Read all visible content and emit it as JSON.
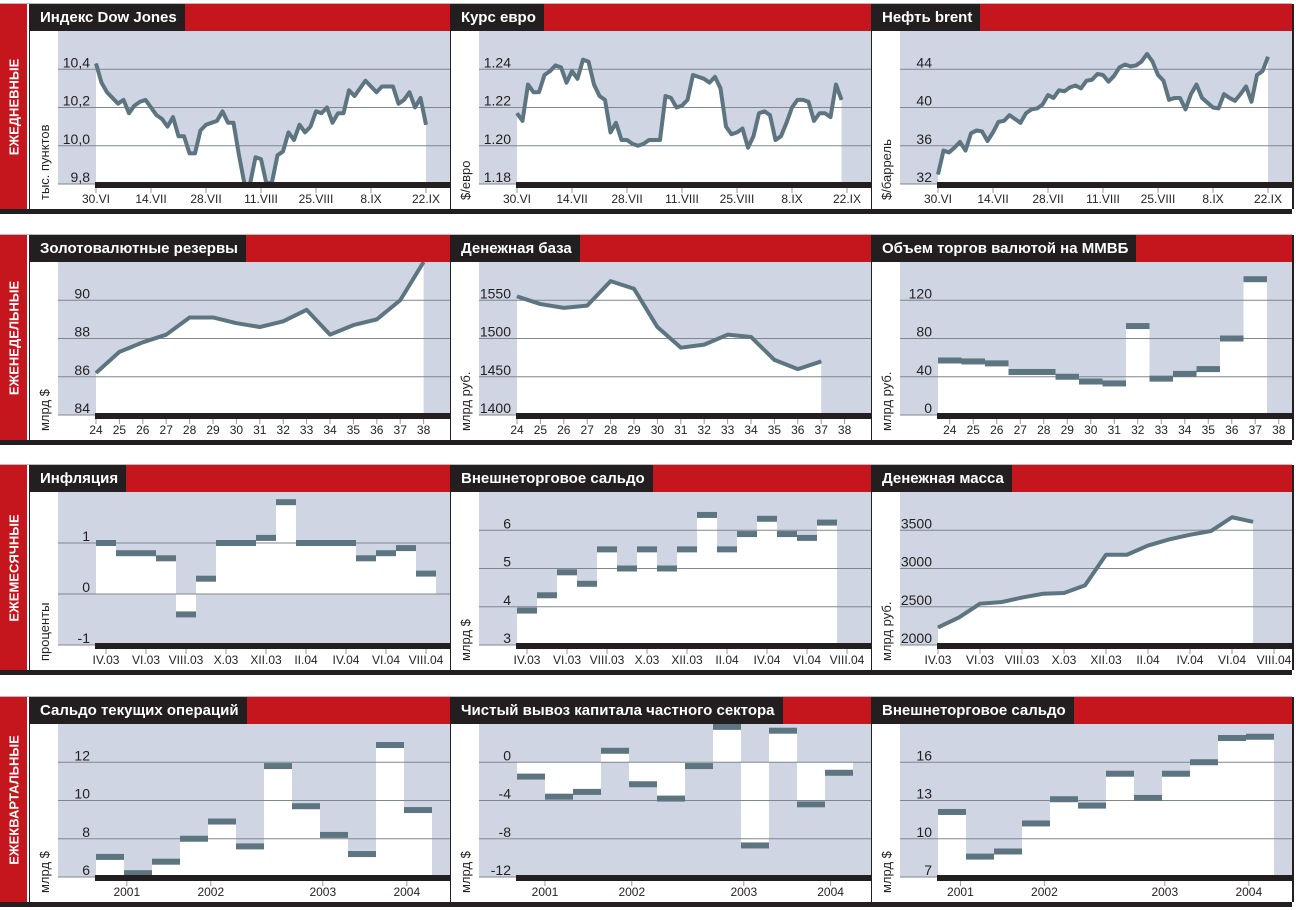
{
  "colors": {
    "red": "#c4161c",
    "black": "#231f20",
    "plot_bg": "#cfd5e2",
    "series": "#5d7580",
    "fill": "#ffffff",
    "grid": "#80868f"
  },
  "rows": [
    {
      "label": "ЕЖЕДНЕВНЫЕ"
    },
    {
      "label": "ЕЖЕНЕДЕЛЬНЫЕ"
    },
    {
      "label": "ЕЖЕМЕСЯЧНЫЕ"
    },
    {
      "label": "ЕЖЕКВАРТАЛЬНЫЕ"
    }
  ],
  "chart_data": [
    {
      "type": "line",
      "freq": "daily",
      "title": "Индекс Dow Jones",
      "ylabel": "тыс. пунктов",
      "ylim": [
        9.8,
        10.6
      ],
      "yticks": [
        {
          "v": 10.4,
          "label": "10,4"
        },
        {
          "v": 10.2,
          "label": "10,2"
        },
        {
          "v": 10.0,
          "label": "10,0"
        },
        {
          "v": 9.8,
          "label": "9,8"
        }
      ],
      "xticks": [
        {
          "i": 0,
          "label": "30.VI"
        },
        {
          "i": 10,
          "label": "14.VII"
        },
        {
          "i": 20,
          "label": "28.VII"
        },
        {
          "i": 30,
          "label": "11.VIII"
        },
        {
          "i": 40,
          "label": "25.VIII"
        },
        {
          "i": 50,
          "label": "8.IX"
        },
        {
          "i": 60,
          "label": "22.IX"
        }
      ],
      "values": [
        10.43,
        10.33,
        10.28,
        10.25,
        10.22,
        10.24,
        10.17,
        10.21,
        10.23,
        10.24,
        10.2,
        10.16,
        10.14,
        10.1,
        10.15,
        10.05,
        10.05,
        9.96,
        9.96,
        10.08,
        10.11,
        10.12,
        10.13,
        10.18,
        10.12,
        10.12,
        9.95,
        9.8,
        9.8,
        9.94,
        9.93,
        9.8,
        9.81,
        9.95,
        9.97,
        10.07,
        10.03,
        10.11,
        10.07,
        10.1,
        10.18,
        10.17,
        10.2,
        10.12,
        10.17,
        10.17,
        10.29,
        10.26,
        10.3,
        10.34,
        10.31,
        10.28,
        10.31,
        10.31,
        10.31,
        10.22,
        10.24,
        10.28,
        10.2,
        10.25,
        10.11
      ]
    },
    {
      "type": "line",
      "freq": "daily",
      "title": "Курс евро",
      "ylabel": "$/евро",
      "ylim": [
        1.18,
        1.26
      ],
      "yticks": [
        {
          "v": 1.24,
          "label": "1.24"
        },
        {
          "v": 1.22,
          "label": "1.22"
        },
        {
          "v": 1.2,
          "label": "1.20"
        },
        {
          "v": 1.18,
          "label": "1.18"
        }
      ],
      "xticks": [
        {
          "i": 0,
          "label": "30.VI"
        },
        {
          "i": 10,
          "label": "14.VII"
        },
        {
          "i": 20,
          "label": "28.VII"
        },
        {
          "i": 30,
          "label": "11.VIII"
        },
        {
          "i": 40,
          "label": "25.VIII"
        },
        {
          "i": 50,
          "label": "8.IX"
        },
        {
          "i": 60,
          "label": "22.IX"
        }
      ],
      "values": [
        1.217,
        1.213,
        1.232,
        1.228,
        1.228,
        1.237,
        1.239,
        1.242,
        1.241,
        1.233,
        1.239,
        1.235,
        1.245,
        1.244,
        1.232,
        1.226,
        1.224,
        1.207,
        1.212,
        1.203,
        1.203,
        1.201,
        1.2,
        1.201,
        1.203,
        1.203,
        1.203,
        1.226,
        1.225,
        1.22,
        1.221,
        1.224,
        1.237,
        1.236,
        1.235,
        1.233,
        1.236,
        1.23,
        1.21,
        1.206,
        1.207,
        1.209,
        1.199,
        1.205,
        1.217,
        1.218,
        1.216,
        1.203,
        1.205,
        1.212,
        1.22,
        1.224,
        1.224,
        1.223,
        1.213,
        1.217,
        1.217,
        1.215,
        1.232,
        1.224
      ]
    },
    {
      "type": "line",
      "freq": "daily",
      "title": "Нефть brent",
      "ylabel": "$/баррель",
      "ylim": [
        32,
        48
      ],
      "yticks": [
        {
          "v": 44,
          "label": "44"
        },
        {
          "v": 40,
          "label": "40"
        },
        {
          "v": 36,
          "label": "36"
        },
        {
          "v": 32,
          "label": "32"
        }
      ],
      "xticks": [
        {
          "i": 0,
          "label": "30.VI"
        },
        {
          "i": 10,
          "label": "14.VII"
        },
        {
          "i": 20,
          "label": "28.VII"
        },
        {
          "i": 30,
          "label": "11.VIII"
        },
        {
          "i": 40,
          "label": "25.VIII"
        },
        {
          "i": 50,
          "label": "8.IX"
        },
        {
          "i": 60,
          "label": "22.IX"
        }
      ],
      "values": [
        33.0,
        35.5,
        35.3,
        35.8,
        36.4,
        35.5,
        37.3,
        37.6,
        37.5,
        36.5,
        37.4,
        38.5,
        38.6,
        39.2,
        38.8,
        38.4,
        39.4,
        39.8,
        39.9,
        40.3,
        41.3,
        41.0,
        41.8,
        41.7,
        42.1,
        42.3,
        42.0,
        42.8,
        42.9,
        43.5,
        43.4,
        42.7,
        43.3,
        44.2,
        44.5,
        44.3,
        44.4,
        44.8,
        45.6,
        44.8,
        43.4,
        42.8,
        40.8,
        41.0,
        41.0,
        39.8,
        41.4,
        42.4,
        41.0,
        40.5,
        40.0,
        39.9,
        41.4,
        41.0,
        40.7,
        41.4,
        42.2,
        40.6,
        43.4,
        43.8,
        45.3
      ]
    },
    {
      "type": "line",
      "freq": "weekly",
      "title": "Золотовалютные резервы",
      "ylabel": "млрд $",
      "ylim": [
        84,
        92
      ],
      "yticks": [
        {
          "v": 90,
          "label": "90"
        },
        {
          "v": 88,
          "label": "88"
        },
        {
          "v": 86,
          "label": "86"
        },
        {
          "v": 84,
          "label": "84"
        }
      ],
      "xticks": [
        {
          "i": 0,
          "label": "24"
        },
        {
          "i": 1,
          "label": "25"
        },
        {
          "i": 2,
          "label": "26"
        },
        {
          "i": 3,
          "label": "27"
        },
        {
          "i": 4,
          "label": "28"
        },
        {
          "i": 5,
          "label": "29"
        },
        {
          "i": 6,
          "label": "30"
        },
        {
          "i": 7,
          "label": "31"
        },
        {
          "i": 8,
          "label": "32"
        },
        {
          "i": 9,
          "label": "33"
        },
        {
          "i": 10,
          "label": "34"
        },
        {
          "i": 11,
          "label": "35"
        },
        {
          "i": 12,
          "label": "36"
        },
        {
          "i": 13,
          "label": "37"
        },
        {
          "i": 14,
          "label": "38"
        }
      ],
      "values": [
        86.2,
        87.3,
        87.8,
        88.2,
        89.1,
        89.1,
        88.8,
        88.6,
        88.9,
        89.5,
        88.2,
        88.7,
        89.0,
        90.0,
        92.0
      ]
    },
    {
      "type": "line",
      "freq": "weekly",
      "title": "Денежная база",
      "ylabel": "млрд руб.",
      "ylim": [
        1400,
        1600
      ],
      "yticks": [
        {
          "v": 1550,
          "label": "1550"
        },
        {
          "v": 1500,
          "label": "1500"
        },
        {
          "v": 1450,
          "label": "1450"
        },
        {
          "v": 1400,
          "label": "1400"
        }
      ],
      "xticks": [
        {
          "i": 0,
          "label": "24"
        },
        {
          "i": 1,
          "label": "25"
        },
        {
          "i": 2,
          "label": "26"
        },
        {
          "i": 3,
          "label": "27"
        },
        {
          "i": 4,
          "label": "28"
        },
        {
          "i": 5,
          "label": "29"
        },
        {
          "i": 6,
          "label": "30"
        },
        {
          "i": 7,
          "label": "31"
        },
        {
          "i": 8,
          "label": "32"
        },
        {
          "i": 9,
          "label": "33"
        },
        {
          "i": 10,
          "label": "34"
        },
        {
          "i": 11,
          "label": "35"
        },
        {
          "i": 12,
          "label": "36"
        },
        {
          "i": 13,
          "label": "37"
        },
        {
          "i": 14,
          "label": "38"
        }
      ],
      "values": [
        1555,
        1545,
        1540,
        1543,
        1575,
        1565,
        1515,
        1488,
        1492,
        1505,
        1502,
        1472,
        1460,
        1470
      ]
    },
    {
      "type": "step",
      "freq": "weekly",
      "title": "Объем торгов валютой на ММВБ",
      "ylabel": "млрд руб.",
      "ylim": [
        0,
        160
      ],
      "yticks": [
        {
          "v": 120,
          "label": "120"
        },
        {
          "v": 80,
          "label": "80"
        },
        {
          "v": 40,
          "label": "40"
        },
        {
          "v": 0,
          "label": "0"
        }
      ],
      "xticks": [
        {
          "i": 0,
          "label": "24"
        },
        {
          "i": 1,
          "label": "25"
        },
        {
          "i": 2,
          "label": "26"
        },
        {
          "i": 3,
          "label": "27"
        },
        {
          "i": 4,
          "label": "28"
        },
        {
          "i": 5,
          "label": "29"
        },
        {
          "i": 6,
          "label": "30"
        },
        {
          "i": 7,
          "label": "31"
        },
        {
          "i": 8,
          "label": "32"
        },
        {
          "i": 9,
          "label": "33"
        },
        {
          "i": 10,
          "label": "34"
        },
        {
          "i": 11,
          "label": "35"
        },
        {
          "i": 12,
          "label": "36"
        },
        {
          "i": 13,
          "label": "37"
        },
        {
          "i": 14,
          "label": "38"
        }
      ],
      "values": [
        57,
        56,
        54,
        45,
        45,
        40,
        35,
        33,
        93,
        38,
        43,
        48,
        80,
        142
      ]
    },
    {
      "type": "step",
      "freq": "monthly",
      "title": "Инфляция",
      "ylabel": "проценты",
      "ylim": [
        -1,
        2
      ],
      "yticks": [
        {
          "v": 1,
          "label": "1"
        },
        {
          "v": 0,
          "label": "0"
        },
        {
          "v": -1,
          "label": "-1"
        }
      ],
      "xticks": [
        {
          "i": 0,
          "label": "IV.03"
        },
        {
          "i": 2,
          "label": "VI.03"
        },
        {
          "i": 4,
          "label": "VIII.03"
        },
        {
          "i": 6,
          "label": "X.03"
        },
        {
          "i": 8,
          "label": "XII.03"
        },
        {
          "i": 10,
          "label": "II.04"
        },
        {
          "i": 12,
          "label": "IV.04"
        },
        {
          "i": 14,
          "label": "VI.04"
        },
        {
          "i": 16,
          "label": "VIII.04"
        }
      ],
      "values": [
        1.0,
        0.8,
        0.8,
        0.7,
        -0.4,
        0.3,
        1.0,
        1.0,
        1.1,
        1.8,
        1.0,
        1.0,
        1.0,
        0.7,
        0.8,
        0.9,
        0.4
      ]
    },
    {
      "type": "step",
      "freq": "monthly",
      "title": "Внешнеторговое сальдо",
      "ylabel": "млрд $",
      "ylim": [
        3,
        7
      ],
      "yticks": [
        {
          "v": 6,
          "label": "6"
        },
        {
          "v": 5,
          "label": "5"
        },
        {
          "v": 4,
          "label": "4"
        },
        {
          "v": 3,
          "label": "3"
        }
      ],
      "xticks": [
        {
          "i": 0,
          "label": "IV.03"
        },
        {
          "i": 2,
          "label": "VI.03"
        },
        {
          "i": 4,
          "label": "VIII.03"
        },
        {
          "i": 6,
          "label": "X.03"
        },
        {
          "i": 8,
          "label": "XII.03"
        },
        {
          "i": 10,
          "label": "II.04"
        },
        {
          "i": 12,
          "label": "IV.04"
        },
        {
          "i": 14,
          "label": "VI.04"
        },
        {
          "i": 16,
          "label": "VIII.04"
        }
      ],
      "values": [
        3.9,
        4.3,
        4.9,
        4.6,
        5.5,
        5.0,
        5.5,
        5.0,
        5.5,
        6.4,
        5.5,
        5.9,
        6.3,
        5.9,
        5.8,
        6.2
      ]
    },
    {
      "type": "line",
      "freq": "monthly",
      "title": "Денежная масса",
      "ylabel": "млрд руб.",
      "ylim": [
        2000,
        4000
      ],
      "yticks": [
        {
          "v": 3500,
          "label": "3500"
        },
        {
          "v": 3000,
          "label": "3000"
        },
        {
          "v": 2500,
          "label": "2500"
        },
        {
          "v": 2000,
          "label": "2000"
        }
      ],
      "xticks": [
        {
          "i": 0,
          "label": "IV.03"
        },
        {
          "i": 2,
          "label": "VI.03"
        },
        {
          "i": 4,
          "label": "VIII.03"
        },
        {
          "i": 6,
          "label": "X.03"
        },
        {
          "i": 8,
          "label": "XII.03"
        },
        {
          "i": 10,
          "label": "II.04"
        },
        {
          "i": 12,
          "label": "IV.04"
        },
        {
          "i": 14,
          "label": "VI.04"
        },
        {
          "i": 16,
          "label": "VIII.04"
        }
      ],
      "values": [
        2230,
        2360,
        2540,
        2560,
        2620,
        2670,
        2680,
        2780,
        3180,
        3180,
        3300,
        3380,
        3440,
        3490,
        3670,
        3610
      ]
    },
    {
      "type": "step",
      "freq": "quarterly",
      "title": "Сальдо текущих операций",
      "ylabel": "млрд $",
      "ylim": [
        6,
        14
      ],
      "yticks": [
        {
          "v": 12,
          "label": "12"
        },
        {
          "v": 10,
          "label": "10"
        },
        {
          "v": 8,
          "label": "8"
        },
        {
          "v": 6,
          "label": "6"
        }
      ],
      "xticks": [
        {
          "i": 0.6,
          "label": "2001"
        },
        {
          "i": 3.6,
          "label": "2002"
        },
        {
          "i": 7.6,
          "label": "2003"
        },
        {
          "i": 10.6,
          "label": "2004"
        }
      ],
      "values": [
        7.05,
        6.2,
        6.8,
        8.0,
        8.9,
        7.6,
        11.8,
        9.7,
        8.2,
        7.2,
        12.9,
        9.5
      ]
    },
    {
      "type": "step",
      "freq": "quarterly",
      "title": "Чистый вывоз капитала частного сектора",
      "ylabel": "млрд $",
      "ylim": [
        -12,
        4
      ],
      "yticks": [
        {
          "v": 0,
          "label": "0"
        },
        {
          "v": -4,
          "label": "-4"
        },
        {
          "v": -8,
          "label": "-8"
        },
        {
          "v": -12,
          "label": "-12"
        }
      ],
      "xticks": [
        {
          "i": 0.5,
          "label": "2001"
        },
        {
          "i": 3.6,
          "label": "2002"
        },
        {
          "i": 7.6,
          "label": "2003"
        },
        {
          "i": 10.7,
          "label": "2004"
        }
      ],
      "values": [
        -1.5,
        -3.6,
        -3.1,
        1.2,
        -2.3,
        -3.8,
        -0.4,
        3.7,
        -8.7,
        3.3,
        -4.4,
        -1.1
      ]
    },
    {
      "type": "step",
      "freq": "quarterly",
      "title": "Внешнеторговое сальдо",
      "ylabel": "млрд $",
      "ylim": [
        7,
        19
      ],
      "yticks": [
        {
          "v": 16,
          "label": "16"
        },
        {
          "v": 13,
          "label": "13"
        },
        {
          "v": 10,
          "label": "10"
        },
        {
          "v": 7,
          "label": "7"
        }
      ],
      "xticks": [
        {
          "i": 0.3,
          "label": "2001"
        },
        {
          "i": 3.3,
          "label": "2002"
        },
        {
          "i": 7.6,
          "label": "2003"
        },
        {
          "i": 10.6,
          "label": "2004"
        }
      ],
      "values": [
        12.1,
        8.6,
        9.0,
        11.2,
        13.1,
        12.6,
        15.1,
        13.2,
        15.1,
        16.0,
        17.9,
        18.0
      ]
    }
  ]
}
